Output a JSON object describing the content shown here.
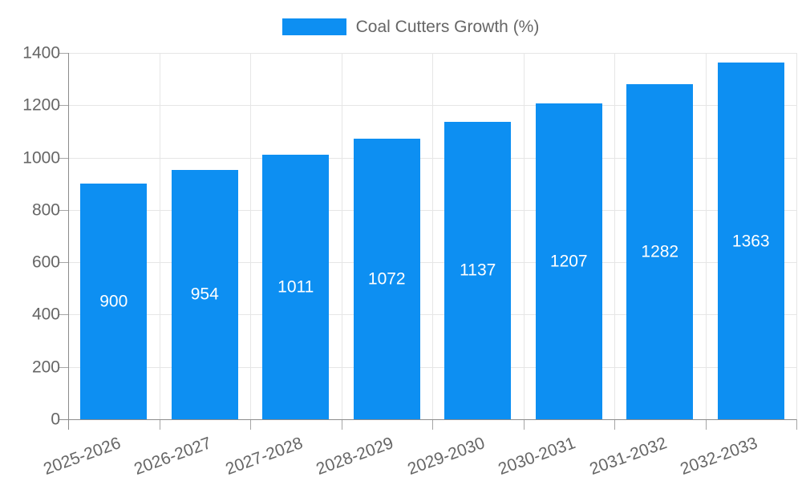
{
  "chart_data": {
    "type": "bar",
    "title": "",
    "categories": [
      "2025-2026",
      "2026-2027",
      "2027-2028",
      "2028-2029",
      "2029-2030",
      "2030-2031",
      "2031-2032",
      "2032-2033"
    ],
    "series": [
      {
        "name": "Coal Cutters Growth (%)",
        "values": [
          900,
          954,
          1011,
          1072,
          1137,
          1207,
          1282,
          1363
        ],
        "color": "#0d8ff2"
      }
    ],
    "xlabel": "",
    "ylabel": "",
    "ylim": [
      0,
      1400
    ],
    "yticks": [
      0,
      200,
      400,
      600,
      800,
      1000,
      1200,
      1400
    ],
    "grid": true,
    "legend_position": "top",
    "value_labels_position": "inside-center",
    "value_label_color": "#ffffff",
    "colors": {
      "background": "#ffffff",
      "grid": "#e6e6e6",
      "axis": "#8c8c8c",
      "tick": "#a6a6a6",
      "label": "#666666"
    }
  }
}
